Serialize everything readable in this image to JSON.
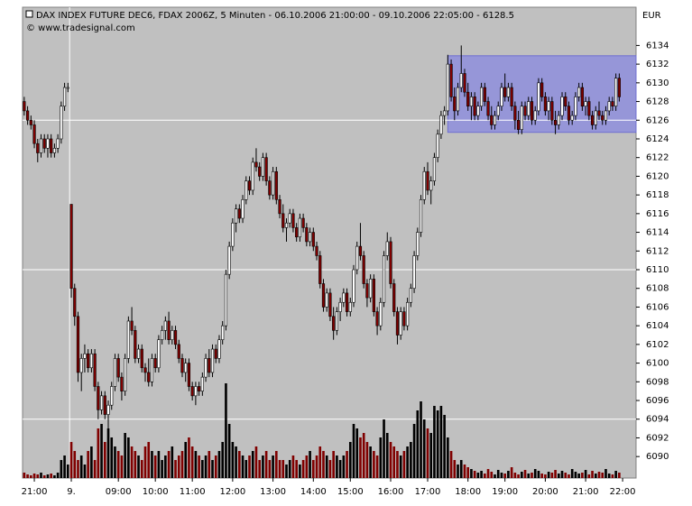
{
  "chart_data": {
    "type": "candlestick",
    "title": "DAX INDEX FUTURE DEC6, FDAX 2006Z, 5 Minuten - 06.10.2006 21:00:00 - 09.10.2006 22:05:00 - 6128.5",
    "subtitle": "© www.tradesignal.com",
    "unit_label": "EUR",
    "up_color": "#ffffff",
    "down_color": "#800000",
    "volume_up_color": "#000000",
    "volume_down_color": "#800000",
    "highlight_color": "#8888e0",
    "xlim": [
      -0.5,
      182
    ],
    "xticks": [
      {
        "value": 3,
        "label": "21:00"
      },
      {
        "value": 14,
        "label": "9."
      },
      {
        "value": 28,
        "label": "09:00"
      },
      {
        "value": 39,
        "label": "10:00"
      },
      {
        "value": 50,
        "label": "11:00"
      },
      {
        "value": 62,
        "label": "12:00"
      },
      {
        "value": 74,
        "label": "13:00"
      },
      {
        "value": 86,
        "label": "14:00"
      },
      {
        "value": 97,
        "label": "15:00"
      },
      {
        "value": 109,
        "label": "16:00"
      },
      {
        "value": 120,
        "label": "17:00"
      },
      {
        "value": 132,
        "label": "18:00"
      },
      {
        "value": 143,
        "label": "19:00"
      },
      {
        "value": 155,
        "label": "20:00"
      },
      {
        "value": 167,
        "label": "21:00"
      },
      {
        "value": 178,
        "label": "22:00"
      }
    ],
    "ylim": [
      6087.7,
      6137.9
    ],
    "yticks": [
      6090,
      6092,
      6094,
      6096,
      6098,
      6100,
      6102,
      6104,
      6106,
      6108,
      6110,
      6112,
      6114,
      6116,
      6118,
      6120,
      6122,
      6124,
      6126,
      6128,
      6130,
      6132,
      6134
    ],
    "hlines": [
      6126,
      6110,
      6094
    ],
    "vline": 13.5,
    "highlight": {
      "x": [
        126,
        182
      ],
      "y": [
        6124.7,
        6132.9
      ]
    },
    "volume_lim": [
      0,
      520
    ],
    "candles": [
      [
        6128,
        6128.5,
        6126.5,
        6127
      ],
      [
        6127,
        6127.5,
        6125.5,
        6126
      ],
      [
        6126,
        6126.5,
        6125,
        6125.5
      ],
      [
        6125.5,
        6126,
        6123,
        6123.5
      ],
      [
        6123.5,
        6124,
        6121.5,
        6122.5
      ],
      [
        6122.5,
        6124.5,
        6122,
        6124
      ],
      [
        6124,
        6124.5,
        6122.5,
        6123
      ],
      [
        6123,
        6124.5,
        6122,
        6124
      ],
      [
        6124,
        6124.5,
        6122,
        6122.5
      ],
      [
        6122.5,
        6123.5,
        6122,
        6123
      ],
      [
        6123,
        6124.5,
        6122.5,
        6124
      ],
      [
        6124,
        6128,
        6123.5,
        6127.5
      ],
      [
        6127.5,
        6130,
        6127,
        6129.5
      ],
      [
        6129.5,
        6130,
        6129,
        6129.5
      ],
      [
        6117,
        6117,
        6107,
        6108
      ],
      [
        6108,
        6108.5,
        6104,
        6105
      ],
      [
        6105,
        6105.5,
        6098,
        6099
      ],
      [
        6099,
        6101,
        6097,
        6100.5
      ],
      [
        6100.5,
        6102,
        6099,
        6101
      ],
      [
        6101,
        6101.5,
        6099,
        6099.5
      ],
      [
        6099.5,
        6101.5,
        6099,
        6101
      ],
      [
        6101,
        6101.5,
        6097,
        6097.5
      ],
      [
        6097.5,
        6098,
        6094,
        6095
      ],
      [
        6095,
        6097,
        6094.5,
        6096.5
      ],
      [
        6096.5,
        6097,
        6094,
        6094.5
      ],
      [
        6094.5,
        6096,
        6093,
        6095.5
      ],
      [
        6095.5,
        6098,
        6095,
        6097.5
      ],
      [
        6097.5,
        6101,
        6097,
        6100.5
      ],
      [
        6100.5,
        6101,
        6098,
        6098.5
      ],
      [
        6098.5,
        6099,
        6096,
        6097
      ],
      [
        6097,
        6101,
        6096.5,
        6100.5
      ],
      [
        6100.5,
        6105,
        6100,
        6104.5
      ],
      [
        6104.5,
        6106,
        6103,
        6103.5
      ],
      [
        6103.5,
        6104,
        6100,
        6100.5
      ],
      [
        6100.5,
        6102,
        6100,
        6101.5
      ],
      [
        6101.5,
        6102,
        6099,
        6099.5
      ],
      [
        6099.5,
        6100,
        6098,
        6099
      ],
      [
        6099,
        6100.5,
        6097.5,
        6098
      ],
      [
        6098,
        6101,
        6097.5,
        6100.5
      ],
      [
        6100.5,
        6101,
        6099,
        6099.5
      ],
      [
        6099.5,
        6103,
        6099,
        6102.5
      ],
      [
        6102.5,
        6104,
        6102,
        6103.5
      ],
      [
        6103.5,
        6105,
        6102.5,
        6104.5
      ],
      [
        6104.5,
        6105.5,
        6102,
        6102.5
      ],
      [
        6102.5,
        6104,
        6102,
        6103.5
      ],
      [
        6103.5,
        6104,
        6101.5,
        6102
      ],
      [
        6102,
        6102.5,
        6100,
        6100.5
      ],
      [
        6100.5,
        6101,
        6098.5,
        6099
      ],
      [
        6099,
        6100.5,
        6098,
        6100
      ],
      [
        6100,
        6100.5,
        6097,
        6097.5
      ],
      [
        6097.5,
        6098,
        6096,
        6096.5
      ],
      [
        6096.5,
        6098,
        6095.5,
        6097.5
      ],
      [
        6097.5,
        6098,
        6096.5,
        6097
      ],
      [
        6097,
        6099,
        6096.5,
        6098.5
      ],
      [
        6098.5,
        6101,
        6098,
        6100.5
      ],
      [
        6100.5,
        6101.5,
        6098.5,
        6099
      ],
      [
        6099,
        6102,
        6098.5,
        6101.5
      ],
      [
        6101.5,
        6102,
        6100,
        6100.5
      ],
      [
        6100.5,
        6103,
        6100,
        6102.5
      ],
      [
        6102.5,
        6104.5,
        6102,
        6104
      ],
      [
        6104,
        6110,
        6103.5,
        6109.5
      ],
      [
        6109.5,
        6113,
        6109,
        6112.5
      ],
      [
        6112.5,
        6115.5,
        6112,
        6115
      ],
      [
        6115,
        6117,
        6114,
        6116.5
      ],
      [
        6116.5,
        6117,
        6115,
        6115.5
      ],
      [
        6115.5,
        6118,
        6115,
        6117.5
      ],
      [
        6117.5,
        6120,
        6117,
        6119.5
      ],
      [
        6119.5,
        6120,
        6118,
        6118.5
      ],
      [
        6118.5,
        6122,
        6118,
        6121.5
      ],
      [
        6121.5,
        6123,
        6120.5,
        6121
      ],
      [
        6121,
        6121.5,
        6119.5,
        6120
      ],
      [
        6120,
        6122.5,
        6119.5,
        6122
      ],
      [
        6122,
        6122.5,
        6119,
        6119.5
      ],
      [
        6119.5,
        6120,
        6117.5,
        6118
      ],
      [
        6118,
        6121,
        6117.5,
        6120.5
      ],
      [
        6120.5,
        6121,
        6117,
        6117.5
      ],
      [
        6117.5,
        6118,
        6115.5,
        6116
      ],
      [
        6116,
        6117,
        6114,
        6114.5
      ],
      [
        6114.5,
        6115.5,
        6113,
        6115
      ],
      [
        6115,
        6116.5,
        6114.5,
        6116
      ],
      [
        6116,
        6116.5,
        6114,
        6114.5
      ],
      [
        6114.5,
        6115,
        6113,
        6113.5
      ],
      [
        6113.5,
        6116,
        6113,
        6115.5
      ],
      [
        6115.5,
        6116,
        6114,
        6114.5
      ],
      [
        6114.5,
        6115,
        6112.5,
        6113
      ],
      [
        6113,
        6114.5,
        6112.5,
        6114
      ],
      [
        6114,
        6114.5,
        6112,
        6112.5
      ],
      [
        6112.5,
        6113,
        6111,
        6111.5
      ],
      [
        6111.5,
        6112,
        6108,
        6108.5
      ],
      [
        6108.5,
        6109,
        6105.5,
        6106
      ],
      [
        6106,
        6108,
        6105.5,
        6107.5
      ],
      [
        6107.5,
        6108,
        6104.5,
        6105
      ],
      [
        6105,
        6106,
        6102.5,
        6103.5
      ],
      [
        6103.5,
        6106,
        6103,
        6105.5
      ],
      [
        6105.5,
        6107,
        6104.5,
        6106.5
      ],
      [
        6106.5,
        6108,
        6106,
        6107.5
      ],
      [
        6107.5,
        6108,
        6105,
        6105.5
      ],
      [
        6105.5,
        6107,
        6105,
        6106.5
      ],
      [
        6106.5,
        6110.5,
        6106,
        6110
      ],
      [
        6110,
        6113,
        6109.5,
        6112.5
      ],
      [
        6112.5,
        6115,
        6111,
        6111.5
      ],
      [
        6111.5,
        6112,
        6108,
        6108.5
      ],
      [
        6108.5,
        6109,
        6106,
        6107
      ],
      [
        6107,
        6109.5,
        6106.5,
        6109
      ],
      [
        6109,
        6109.5,
        6105,
        6105.5
      ],
      [
        6105.5,
        6106,
        6103,
        6104
      ],
      [
        6104,
        6107,
        6103.5,
        6106.5
      ],
      [
        6106.5,
        6112,
        6106,
        6111.5
      ],
      [
        6111.5,
        6114,
        6111,
        6113
      ],
      [
        6113,
        6113.5,
        6108,
        6108.5
      ],
      [
        6108.5,
        6109,
        6105,
        6105.5
      ],
      [
        6105.5,
        6106,
        6102,
        6103
      ],
      [
        6103,
        6106,
        6102.5,
        6105.5
      ],
      [
        6105.5,
        6106,
        6103.5,
        6104
      ],
      [
        6104,
        6107,
        6103.5,
        6106.5
      ],
      [
        6106.5,
        6108.5,
        6106,
        6108
      ],
      [
        6108,
        6112,
        6107.5,
        6111.5
      ],
      [
        6111.5,
        6114.5,
        6111,
        6114
      ],
      [
        6114,
        6118,
        6113.5,
        6117.5
      ],
      [
        6117.5,
        6121,
        6117,
        6120.5
      ],
      [
        6120.5,
        6121.5,
        6118,
        6118.5
      ],
      [
        6118.5,
        6120,
        6117,
        6119.5
      ],
      [
        6119.5,
        6122.5,
        6119,
        6122
      ],
      [
        6122,
        6125,
        6121.5,
        6124.5
      ],
      [
        6124.5,
        6127,
        6124,
        6126.5
      ],
      [
        6126.5,
        6127.5,
        6125.5,
        6127
      ],
      [
        6127,
        6133,
        6126.5,
        6132
      ],
      [
        6132,
        6132.5,
        6128,
        6128.5
      ],
      [
        6128.5,
        6129.5,
        6126,
        6127
      ],
      [
        6127,
        6130,
        6126.5,
        6129.5
      ],
      [
        6129.5,
        6134,
        6129,
        6131
      ],
      [
        6131,
        6131.5,
        6128.5,
        6129
      ],
      [
        6129,
        6130,
        6127,
        6127.5
      ],
      [
        6127.5,
        6129,
        6126,
        6128.5
      ],
      [
        6128.5,
        6129,
        6126,
        6126.5
      ],
      [
        6126.5,
        6128,
        6126,
        6127.5
      ],
      [
        6127.5,
        6130,
        6127,
        6129.5
      ],
      [
        6129.5,
        6130,
        6127.5,
        6128
      ],
      [
        6128,
        6128.5,
        6126,
        6126.5
      ],
      [
        6126.5,
        6127.5,
        6125,
        6125.5
      ],
      [
        6125.5,
        6127,
        6125,
        6126.5
      ],
      [
        6126.5,
        6128,
        6126,
        6127.5
      ],
      [
        6127.5,
        6130,
        6127,
        6129.5
      ],
      [
        6129.5,
        6131,
        6128,
        6128.5
      ],
      [
        6128.5,
        6130,
        6128,
        6129.5
      ],
      [
        6129.5,
        6130,
        6127,
        6127.5
      ],
      [
        6127.5,
        6128,
        6125,
        6126
      ],
      [
        6126,
        6127,
        6124.5,
        6125
      ],
      [
        6125,
        6128,
        6124.5,
        6127.5
      ],
      [
        6127.5,
        6128,
        6126,
        6126.5
      ],
      [
        6126.5,
        6128.5,
        6126,
        6128
      ],
      [
        6128,
        6128.5,
        6125.5,
        6126
      ],
      [
        6126,
        6127.5,
        6125.5,
        6127
      ],
      [
        6127,
        6130.5,
        6126.5,
        6130
      ],
      [
        6130,
        6130.5,
        6128,
        6128.5
      ],
      [
        6128.5,
        6129,
        6126.5,
        6127
      ],
      [
        6127,
        6128.5,
        6126,
        6128
      ],
      [
        6128,
        6128.5,
        6125.5,
        6126
      ],
      [
        6126,
        6127,
        6124.5,
        6125.5
      ],
      [
        6125.5,
        6127,
        6125,
        6126.5
      ],
      [
        6126.5,
        6129,
        6126,
        6128.5
      ],
      [
        6128.5,
        6129,
        6127,
        6127.5
      ],
      [
        6127.5,
        6128,
        6125.5,
        6126
      ],
      [
        6126,
        6127,
        6125.5,
        6126.5
      ],
      [
        6126.5,
        6129,
        6126,
        6128.5
      ],
      [
        6128.5,
        6130,
        6128,
        6129.5
      ],
      [
        6129.5,
        6130,
        6127,
        6127.5
      ],
      [
        6127.5,
        6128.5,
        6126.5,
        6128
      ],
      [
        6128,
        6128.5,
        6126,
        6126.5
      ],
      [
        6126.5,
        6127,
        6125,
        6125.5
      ],
      [
        6125.5,
        6127.5,
        6125,
        6127
      ],
      [
        6127,
        6128,
        6126,
        6126.5
      ],
      [
        6126.5,
        6127,
        6125.5,
        6126
      ],
      [
        6126,
        6127.5,
        6125.5,
        6127
      ],
      [
        6127,
        6128.5,
        6126.5,
        6128
      ],
      [
        6128,
        6128.5,
        6127,
        6127.5
      ],
      [
        6127.5,
        6131,
        6127,
        6130.5
      ],
      [
        6130.5,
        6131,
        6128,
        6128.5
      ]
    ],
    "volumes": [
      6,
      4,
      3,
      5,
      4,
      6,
      3,
      4,
      5,
      3,
      6,
      20,
      25,
      15,
      40,
      30,
      20,
      25,
      15,
      30,
      35,
      20,
      55,
      60,
      40,
      55,
      45,
      35,
      30,
      25,
      50,
      45,
      35,
      30,
      25,
      20,
      35,
      40,
      30,
      25,
      30,
      20,
      25,
      30,
      35,
      20,
      25,
      30,
      40,
      45,
      35,
      30,
      25,
      20,
      25,
      30,
      20,
      25,
      30,
      40,
      105,
      60,
      40,
      35,
      30,
      25,
      20,
      25,
      30,
      35,
      20,
      25,
      30,
      20,
      25,
      30,
      20,
      20,
      15,
      20,
      25,
      20,
      15,
      20,
      25,
      30,
      20,
      25,
      35,
      30,
      25,
      20,
      30,
      25,
      20,
      25,
      30,
      40,
      60,
      55,
      45,
      50,
      40,
      35,
      30,
      25,
      45,
      65,
      50,
      40,
      35,
      30,
      25,
      30,
      35,
      40,
      60,
      75,
      85,
      65,
      55,
      50,
      80,
      75,
      80,
      70,
      45,
      30,
      20,
      15,
      20,
      15,
      12,
      10,
      8,
      6,
      8,
      5,
      10,
      7,
      4,
      9,
      6,
      5,
      8,
      12,
      6,
      4,
      7,
      9,
      5,
      6,
      10,
      8,
      5,
      4,
      7,
      6,
      9,
      5,
      8,
      6,
      4,
      10,
      7,
      5,
      6,
      9,
      4,
      8,
      5,
      7,
      6,
      10,
      5,
      4,
      8,
      6
    ]
  }
}
